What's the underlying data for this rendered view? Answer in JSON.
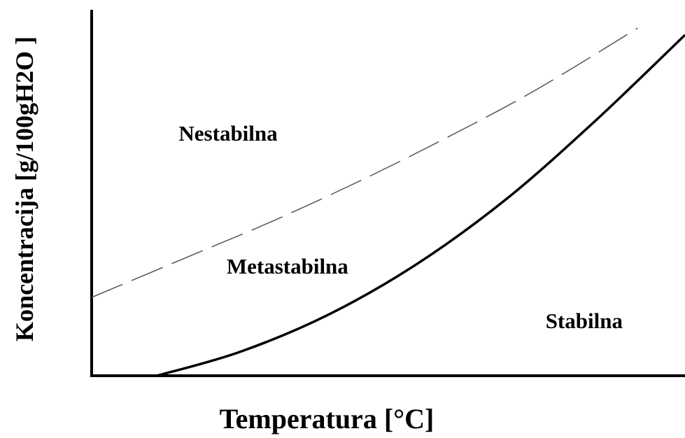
{
  "chart_data": {
    "type": "line",
    "title": "",
    "xlabel": "Temperatura [°C]",
    "ylabel": "Koncentracija [g/100gH2O ]",
    "xlim": [
      0,
      100
    ],
    "ylim": [
      0,
      100
    ],
    "grid": false,
    "legend": "none",
    "ticks_shown": false,
    "series": [
      {
        "style": "solid",
        "color": "#000000",
        "x": [
          11,
          25,
          40,
          55,
          70,
          85,
          100
        ],
        "y": [
          0,
          7,
          18,
          33,
          52,
          75,
          100
        ]
      },
      {
        "style": "dashed",
        "color": "#555555",
        "x": [
          0,
          15,
          30,
          45,
          60,
          75,
          92
        ],
        "y": [
          23,
          34,
          45,
          57,
          70,
          84,
          102
        ]
      }
    ],
    "region_labels": [
      {
        "text": "Nestabilna",
        "x": 23,
        "y": 69
      },
      {
        "text": "Metastabilna",
        "x": 33,
        "y": 30
      },
      {
        "text": "Stabilna",
        "x": 83,
        "y": 14
      }
    ]
  }
}
